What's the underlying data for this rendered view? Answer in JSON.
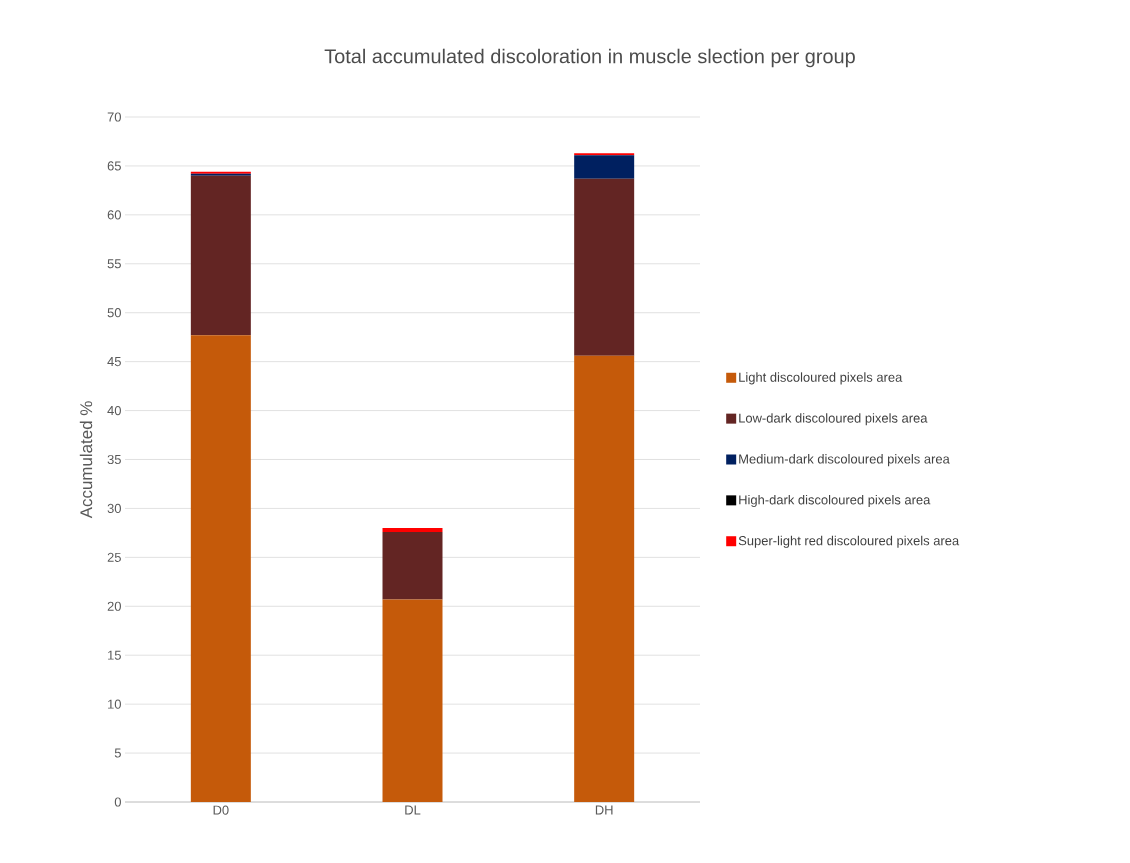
{
  "chart_data": {
    "type": "bar",
    "stacked": true,
    "title": "Total accumulated discoloration in muscle slection per group",
    "ylabel": "Accumulated %",
    "categories": [
      "D0",
      "DL",
      "DH"
    ],
    "series": [
      {
        "name": "Light discoloured pixels area",
        "color": "#c55a0a",
        "values": [
          47.7,
          20.7,
          45.6
        ]
      },
      {
        "name": "Low-dark discoloured pixels area",
        "color": "#632523",
        "values": [
          16.3,
          6.9,
          18.1
        ]
      },
      {
        "name": "Medium-dark discoloured pixels area",
        "color": "#002060",
        "values": [
          0.2,
          0,
          2.4
        ]
      },
      {
        "name": "High-dark discoloured pixels area",
        "color": "#000000",
        "values": [
          0,
          0,
          0
        ]
      },
      {
        "name": "Super-light red discoloured pixels area",
        "color": "#ff0000",
        "values": [
          0.2,
          0.4,
          0.2
        ]
      }
    ],
    "ylim": [
      0,
      70
    ],
    "yticks": [
      0,
      5,
      10,
      15,
      20,
      25,
      30,
      35,
      40,
      45,
      50,
      55,
      60,
      65,
      70
    ],
    "grid": "y",
    "legend": "right"
  }
}
